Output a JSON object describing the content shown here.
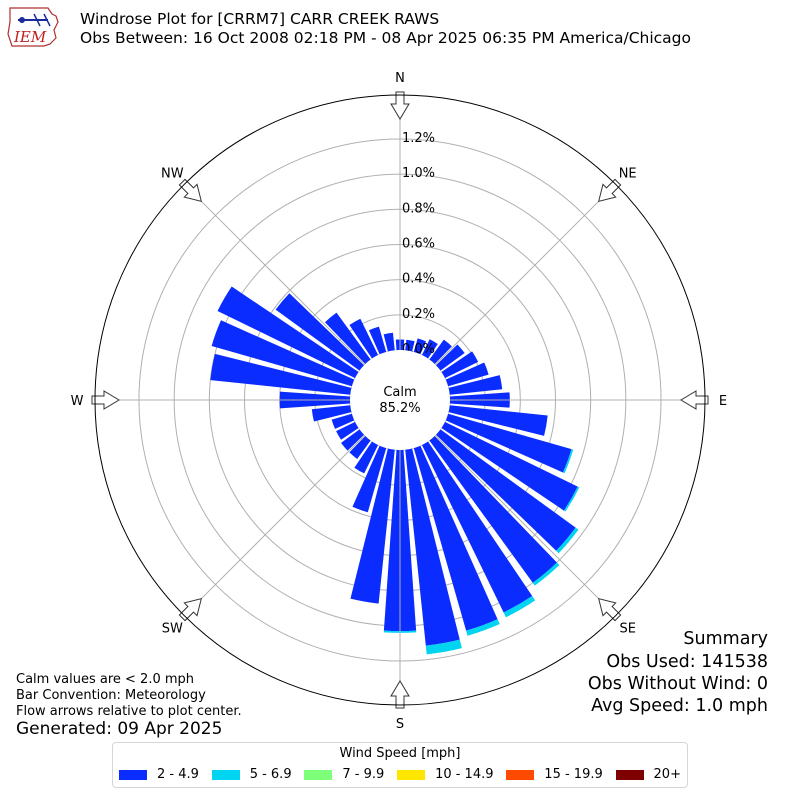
{
  "header": {
    "title": "Windrose Plot for [CRRM7] CARR CREEK RAWS",
    "subtitle": "Obs Between: 16 Oct 2008 02:18 PM - 08 Apr 2025 06:35 PM America/Chicago",
    "logo_text": "IEM"
  },
  "notes": {
    "calm_note": "Calm values are < 2.0 mph",
    "bar_convention": "Bar Convention: Meteorology",
    "flow_arrows": "Flow arrows relative to plot center.",
    "generated": "Generated: 09 Apr 2025"
  },
  "summary": {
    "heading": "Summary",
    "obs_used": "Obs Used: 141538",
    "obs_without_wind": "Obs Without Wind: 0",
    "avg_speed": "Avg Speed: 1.0 mph"
  },
  "legend": {
    "title": "Wind Speed [mph]",
    "items": [
      {
        "label": "2 - 4.9",
        "color": "#0a2cff"
      },
      {
        "label": "5 - 6.9",
        "color": "#00d4f0"
      },
      {
        "label": "7 - 9.9",
        "color": "#7dff7a"
      },
      {
        "label": "10 - 14.9",
        "color": "#ffe600"
      },
      {
        "label": "15 - 19.9",
        "color": "#ff4a00"
      },
      {
        "label": "20+",
        "color": "#7f0000"
      }
    ]
  },
  "chart_data": {
    "type": "windrose",
    "calm_label": "Calm",
    "calm_value": "85.2%",
    "compass_labels": [
      {
        "dir": 0,
        "label": "N"
      },
      {
        "dir": 45,
        "label": "NE"
      },
      {
        "dir": 90,
        "label": "E"
      },
      {
        "dir": 135,
        "label": "SE"
      },
      {
        "dir": 180,
        "label": "S"
      },
      {
        "dir": 225,
        "label": "SW"
      },
      {
        "dir": 270,
        "label": "W"
      },
      {
        "dir": 315,
        "label": "NW"
      }
    ],
    "r_ticks": [
      0.0,
      0.2,
      0.4,
      0.6,
      0.8,
      1.0,
      1.2
    ],
    "r_tick_labels": [
      "0.0%",
      "0.2%",
      "0.4%",
      "0.6%",
      "0.8%",
      "1.0%",
      "1.2%"
    ],
    "r_max": 1.45,
    "sector_width_deg": 10,
    "directions": [
      0,
      10,
      20,
      30,
      40,
      50,
      60,
      70,
      80,
      90,
      100,
      110,
      120,
      130,
      140,
      150,
      160,
      170,
      180,
      190,
      200,
      210,
      220,
      230,
      240,
      250,
      260,
      270,
      280,
      290,
      300,
      310,
      320,
      330,
      340,
      350
    ],
    "series": [
      {
        "name": "2 - 4.9",
        "color": "#0a2cff",
        "values": [
          0.06,
          0.06,
          0.08,
          0.1,
          0.14,
          0.17,
          0.21,
          0.24,
          0.3,
          0.34,
          0.56,
          0.73,
          0.84,
          0.95,
          1.0,
          1.06,
          1.08,
          1.12,
          1.03,
          0.88,
          0.38,
          0.18,
          0.13,
          0.13,
          0.12,
          0.12,
          0.22,
          0.4,
          0.8,
          0.83,
          0.87,
          0.59,
          0.33,
          0.23,
          0.15,
          0.1
        ]
      },
      {
        "name": "5 - 6.9",
        "color": "#00d4f0",
        "values": [
          0,
          0,
          0,
          0,
          0,
          0,
          0,
          0,
          0,
          0,
          0,
          0.01,
          0.01,
          0.02,
          0.02,
          0.03,
          0.03,
          0.05,
          0.01,
          0,
          0,
          0,
          0,
          0,
          0,
          0,
          0,
          0,
          0,
          0,
          0,
          0,
          0,
          0,
          0,
          0
        ]
      }
    ]
  }
}
